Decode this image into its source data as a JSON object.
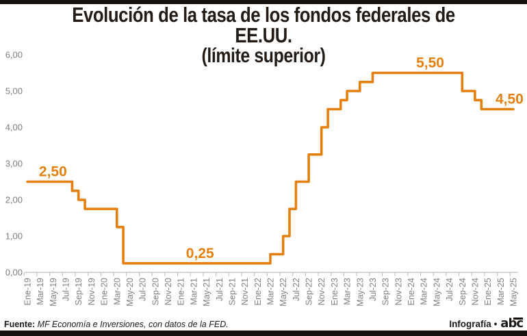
{
  "title": {
    "line1": "Evolución de la tasa de los fondos federales de EE.UU.",
    "line2": "(límite superior)"
  },
  "footer": {
    "source_label": "Fuente:",
    "source_text": "MF Economía e Inversiones, con datos de la FED.",
    "credit": "Infografía •",
    "logo": "abc"
  },
  "colors": {
    "line": "#e5800f",
    "annotation": "#e5800f",
    "axis": "#bfbfbf",
    "tick_text": "#7f7f7f",
    "bars": "#161210"
  },
  "chart_data": {
    "type": "line",
    "step": true,
    "title": "Evolución de la tasa de los fondos federales de EE.UU. (límite superior)",
    "xlabel": "",
    "ylabel": "",
    "x_start": "Ene-19",
    "x_end": "May-25",
    "x_interval": "monthly",
    "x_tick_labels": [
      "Ene-19",
      "Mar-19",
      "May-19",
      "Jul-19",
      "Sep-19",
      "Nov-19",
      "Ene-20",
      "Mar-20",
      "May-20",
      "Jul-20",
      "Sep-20",
      "Nov-20",
      "Ene-21",
      "Mar-21",
      "May-21",
      "Jul-21",
      "Sep-21",
      "Nov-21",
      "Ene-22",
      "Mar-22",
      "May-22",
      "Jul-22",
      "Sep-22",
      "Nov-22",
      "Ene-23",
      "Mar-23",
      "May-23",
      "Jul-23",
      "Sep-23",
      "Nov-23",
      "Ene-24",
      "Mar-24",
      "May-24",
      "Jul-24",
      "Sep-24",
      "Nov-24",
      "Ene-25",
      "Mar-25",
      "May-25"
    ],
    "values": [
      2.5,
      2.5,
      2.5,
      2.5,
      2.5,
      2.5,
      2.5,
      2.25,
      2.0,
      1.75,
      1.75,
      1.75,
      1.75,
      1.75,
      1.25,
      0.25,
      0.25,
      0.25,
      0.25,
      0.25,
      0.25,
      0.25,
      0.25,
      0.25,
      0.25,
      0.25,
      0.25,
      0.25,
      0.25,
      0.25,
      0.25,
      0.25,
      0.25,
      0.25,
      0.25,
      0.25,
      0.25,
      0.25,
      0.5,
      0.5,
      1.0,
      1.75,
      2.5,
      2.5,
      3.25,
      3.25,
      4.0,
      4.5,
      4.5,
      4.75,
      5.0,
      5.0,
      5.25,
      5.25,
      5.5,
      5.5,
      5.5,
      5.5,
      5.5,
      5.5,
      5.5,
      5.5,
      5.5,
      5.5,
      5.5,
      5.5,
      5.5,
      5.5,
      5.0,
      5.0,
      4.75,
      4.5,
      4.5,
      4.5,
      4.5,
      4.5,
      4.5
    ],
    "ylim": [
      0,
      6
    ],
    "y_ticks": [
      0,
      1,
      2,
      3,
      4,
      5,
      6
    ],
    "y_tick_labels": [
      "0,00",
      "1,00",
      "2,00",
      "3,00",
      "4,00",
      "5,00",
      "6,00"
    ],
    "grid": false,
    "legend": "none",
    "annotations": [
      {
        "text": "2,50",
        "value": 2.5,
        "month": 4
      },
      {
        "text": "0,25",
        "value": 0.25,
        "month": 27
      },
      {
        "text": "5,50",
        "value": 5.5,
        "month": 63
      },
      {
        "text": "4,50",
        "value": 4.5,
        "month": 75.4
      }
    ]
  }
}
